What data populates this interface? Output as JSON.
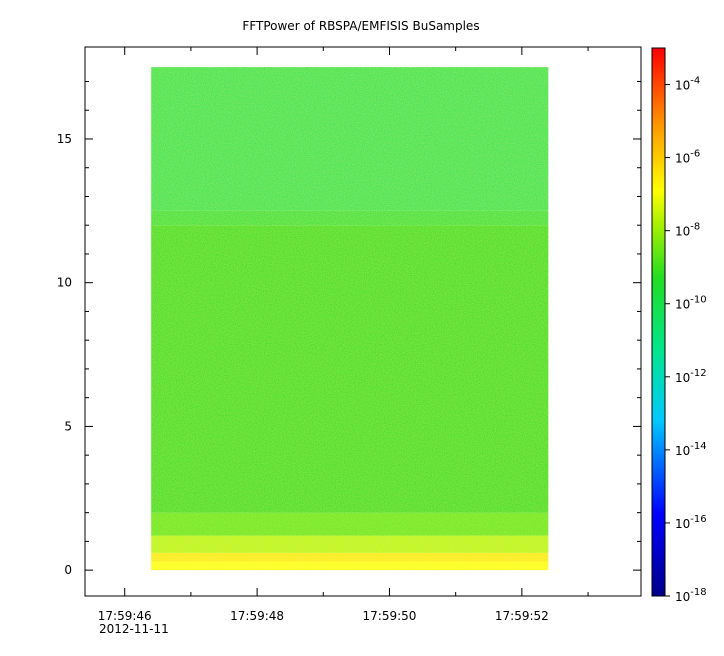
{
  "chart_data": {
    "type": "heatmap",
    "title": "FFTPower of RBSPA/EMFISIS  BuSamples",
    "xlabel": "",
    "ylabel": "",
    "x_tick_labels": [
      "17:59:46",
      "17:59:48",
      "17:59:50",
      "17:59:52"
    ],
    "x_sublabel": "2012-11-11",
    "x_ticks_sec": [
      0,
      2,
      4,
      6
    ],
    "xlim_sec": [
      -0.6,
      7.8
    ],
    "data_x_range_sec": [
      0.4,
      6.4
    ],
    "y_ticks": [
      0,
      5,
      10,
      15
    ],
    "ylim": [
      -0.9,
      18.2
    ],
    "data_y_range": [
      0,
      17.5
    ],
    "colorbar": {
      "scale": "log",
      "range": [
        1e-18,
        0.001
      ],
      "tick_labels": [
        {
          "base": "10",
          "exp": "-4",
          "value": -4
        },
        {
          "base": "10",
          "exp": "-6",
          "value": -6
        },
        {
          "base": "10",
          "exp": "-8",
          "value": -8
        },
        {
          "base": "10",
          "exp": "-10",
          "value": -10
        },
        {
          "base": "10",
          "exp": "-12",
          "value": -12
        },
        {
          "base": "10",
          "exp": "-14",
          "value": -14
        },
        {
          "base": "10",
          "exp": "-16",
          "value": -16
        },
        {
          "base": "10",
          "exp": "-18",
          "value": -18
        }
      ]
    },
    "bands": [
      {
        "y_from": 0,
        "y_to": 0.3,
        "log_power": -8.0
      },
      {
        "y_from": 0.3,
        "y_to": 0.6,
        "log_power": -7.6
      },
      {
        "y_from": 0.6,
        "y_to": 1.2,
        "log_power": -8.6
      },
      {
        "y_from": 1.2,
        "y_to": 2.0,
        "log_power": -9.4
      },
      {
        "y_from": 2.0,
        "y_to": 12.0,
        "log_power": -10.0
      },
      {
        "y_from": 12.0,
        "y_to": 12.5,
        "log_power": -10.6
      },
      {
        "y_from": 12.5,
        "y_to": 17.5,
        "log_power": -11.0
      }
    ],
    "grid": false,
    "legend": "colorbar-right"
  }
}
